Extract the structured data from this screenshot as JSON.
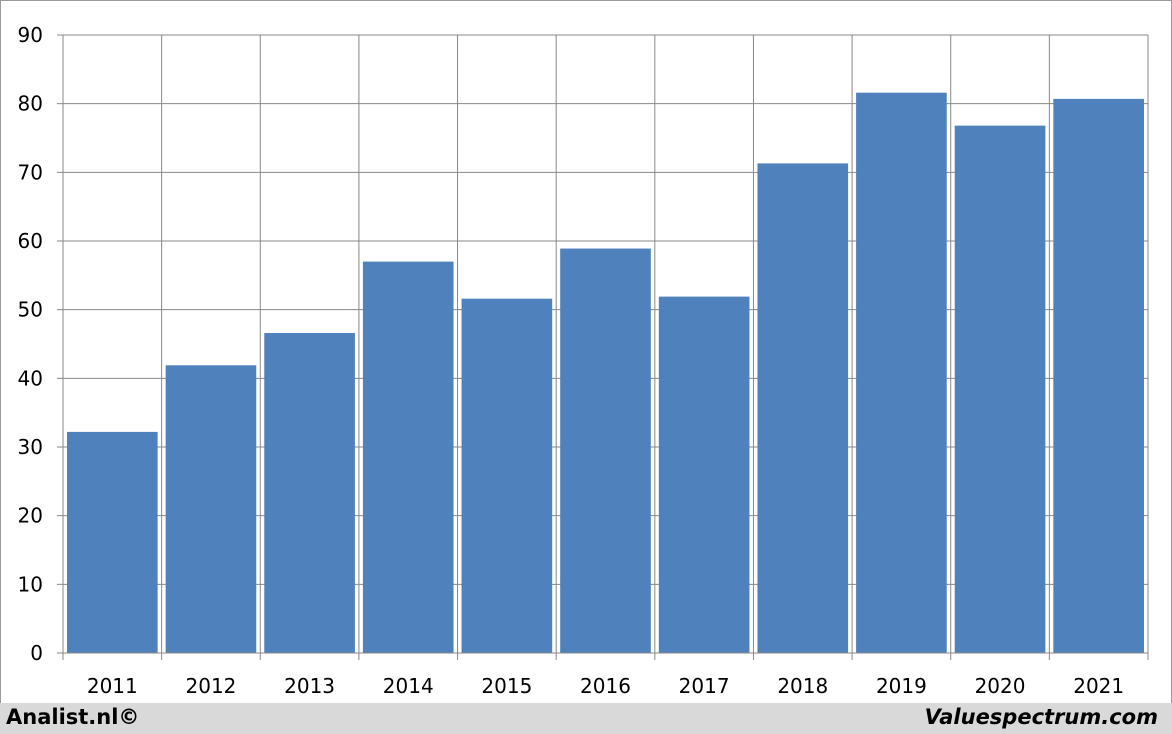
{
  "chart_data": {
    "type": "bar",
    "title": "",
    "xlabel": "",
    "ylabel": "",
    "categories": [
      "2011",
      "2012",
      "2013",
      "2014",
      "2015",
      "2016",
      "2017",
      "2018",
      "2019",
      "2020",
      "2021"
    ],
    "values": [
      32.2,
      41.9,
      46.6,
      57.0,
      51.6,
      58.9,
      51.9,
      71.3,
      81.6,
      76.8,
      80.7
    ],
    "ylim": [
      0,
      90
    ],
    "yticks": [
      "0",
      "10",
      "20",
      "30",
      "40",
      "50",
      "60",
      "70",
      "80",
      "90"
    ],
    "grid": true,
    "bar_color": "#4f81bd",
    "grid_color": "#888888"
  },
  "footer": {
    "left": "Analist.nl©",
    "right": "Valuespectrum.com"
  }
}
